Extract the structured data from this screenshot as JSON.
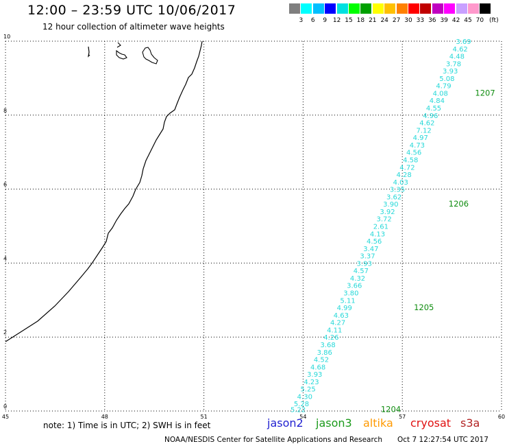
{
  "title": "12:00 – 23:59 UTC 10/06/2017",
  "subtitle": "12 hour collection of altimeter wave heights",
  "colorbar": {
    "unit": "(ft)",
    "colors": [
      "#7f7f7f",
      "#00ffff",
      "#00bfff",
      "#0000ff",
      "#00e0e0",
      "#00ff00",
      "#00a000",
      "#ffff00",
      "#ffc000",
      "#ff8000",
      "#ff0000",
      "#c00000",
      "#c000c0",
      "#ff00ff",
      "#c8a0ff",
      "#ff99cc",
      "#000000"
    ],
    "labels": [
      "3",
      "6",
      "9",
      "12",
      "15",
      "18",
      "21",
      "24",
      "27",
      "30",
      "33",
      "36",
      "39",
      "42",
      "45",
      "70"
    ]
  },
  "axes": {
    "x_ticks": [
      "45",
      "48",
      "51",
      "54",
      "57",
      "60"
    ],
    "y_ticks": [
      "0",
      "2",
      "4",
      "6",
      "8",
      "10"
    ],
    "x_range": [
      45,
      60
    ],
    "y_range": [
      0,
      10
    ]
  },
  "swh_track": [
    {
      "lon": 58.85,
      "lat": 10.0,
      "swh": "3.69"
    },
    {
      "lon": 58.75,
      "lat": 9.8,
      "swh": "4.62"
    },
    {
      "lon": 58.65,
      "lat": 9.6,
      "swh": "4.48"
    },
    {
      "lon": 58.55,
      "lat": 9.4,
      "swh": "3.78"
    },
    {
      "lon": 58.45,
      "lat": 9.2,
      "swh": "3.93"
    },
    {
      "lon": 58.35,
      "lat": 9.0,
      "swh": "5.08"
    },
    {
      "lon": 58.25,
      "lat": 8.8,
      "swh": "4.79"
    },
    {
      "lon": 58.15,
      "lat": 8.6,
      "swh": "4.08"
    },
    {
      "lon": 58.05,
      "lat": 8.4,
      "swh": "4.84"
    },
    {
      "lon": 57.95,
      "lat": 8.2,
      "swh": "4.55"
    },
    {
      "lon": 57.85,
      "lat": 8.0,
      "swh": "4.96"
    },
    {
      "lon": 57.75,
      "lat": 7.8,
      "swh": "4.62"
    },
    {
      "lon": 57.65,
      "lat": 7.6,
      "swh": "7.12"
    },
    {
      "lon": 57.55,
      "lat": 7.4,
      "swh": "4.97"
    },
    {
      "lon": 57.45,
      "lat": 7.2,
      "swh": "4.73"
    },
    {
      "lon": 57.35,
      "lat": 7.0,
      "swh": "4.56"
    },
    {
      "lon": 57.25,
      "lat": 6.8,
      "swh": "4.58"
    },
    {
      "lon": 57.15,
      "lat": 6.6,
      "swh": "4.72"
    },
    {
      "lon": 57.05,
      "lat": 6.4,
      "swh": "4.28"
    },
    {
      "lon": 56.95,
      "lat": 6.2,
      "swh": "4.03"
    },
    {
      "lon": 56.85,
      "lat": 6.0,
      "swh": "3.35"
    },
    {
      "lon": 56.75,
      "lat": 5.8,
      "swh": "3.62"
    },
    {
      "lon": 56.65,
      "lat": 5.6,
      "swh": "3.90"
    },
    {
      "lon": 56.55,
      "lat": 5.4,
      "swh": "3.92"
    },
    {
      "lon": 56.45,
      "lat": 5.2,
      "swh": "3.72"
    },
    {
      "lon": 56.35,
      "lat": 5.0,
      "swh": "2.61"
    },
    {
      "lon": 56.25,
      "lat": 4.8,
      "swh": "4.13"
    },
    {
      "lon": 56.15,
      "lat": 4.6,
      "swh": "4.56"
    },
    {
      "lon": 56.05,
      "lat": 4.4,
      "swh": "3.47"
    },
    {
      "lon": 55.95,
      "lat": 4.2,
      "swh": "3.37"
    },
    {
      "lon": 55.85,
      "lat": 4.0,
      "swh": "3.93"
    },
    {
      "lon": 55.75,
      "lat": 3.8,
      "swh": "4.57"
    },
    {
      "lon": 55.65,
      "lat": 3.6,
      "swh": "4.32"
    },
    {
      "lon": 55.55,
      "lat": 3.4,
      "swh": "3.66"
    },
    {
      "lon": 55.45,
      "lat": 3.2,
      "swh": "3.80"
    },
    {
      "lon": 55.35,
      "lat": 3.0,
      "swh": "5.11"
    },
    {
      "lon": 55.25,
      "lat": 2.8,
      "swh": "4.99"
    },
    {
      "lon": 55.15,
      "lat": 2.6,
      "swh": "4.63"
    },
    {
      "lon": 55.05,
      "lat": 2.4,
      "swh": "4.27"
    },
    {
      "lon": 54.95,
      "lat": 2.2,
      "swh": "4.11"
    },
    {
      "lon": 54.85,
      "lat": 2.0,
      "swh": "4.26"
    },
    {
      "lon": 54.75,
      "lat": 1.8,
      "swh": "3.68"
    },
    {
      "lon": 54.65,
      "lat": 1.6,
      "swh": "3.86"
    },
    {
      "lon": 54.55,
      "lat": 1.4,
      "swh": "4.52"
    },
    {
      "lon": 54.45,
      "lat": 1.2,
      "swh": "4.68"
    },
    {
      "lon": 54.35,
      "lat": 1.0,
      "swh": "3.93"
    },
    {
      "lon": 54.25,
      "lat": 0.8,
      "swh": "4.23"
    },
    {
      "lon": 54.15,
      "lat": 0.6,
      "swh": "5.25"
    },
    {
      "lon": 54.05,
      "lat": 0.4,
      "swh": "4.30"
    },
    {
      "lon": 53.95,
      "lat": 0.2,
      "swh": "5.28"
    },
    {
      "lon": 53.85,
      "lat": 0.05,
      "swh": "5.22"
    }
  ],
  "time_labels": [
    {
      "text": "1207",
      "lon": 59.2,
      "lat": 8.6
    },
    {
      "text": "1206",
      "lon": 58.4,
      "lat": 5.6
    },
    {
      "text": "1205",
      "lon": 57.35,
      "lat": 2.8
    },
    {
      "text": "1204",
      "lon": 56.35,
      "lat": 0.05
    }
  ],
  "note": "note: 1) Time is in UTC; 2) SWH is in feet",
  "missions": [
    {
      "name": "jason2",
      "color": "#1f1fd0"
    },
    {
      "name": "jason3",
      "color": "#1a9a1a"
    },
    {
      "name": "altika",
      "color": "#ff9900"
    },
    {
      "name": "cryosat",
      "color": "#e01010"
    },
    {
      "name": "s3a",
      "color": "#b22222"
    }
  ],
  "footer": "NOAA/NESDIS Center for Satellite Applications and Research",
  "footer_time": "Oct  7 12:27:54 UTC 2017"
}
